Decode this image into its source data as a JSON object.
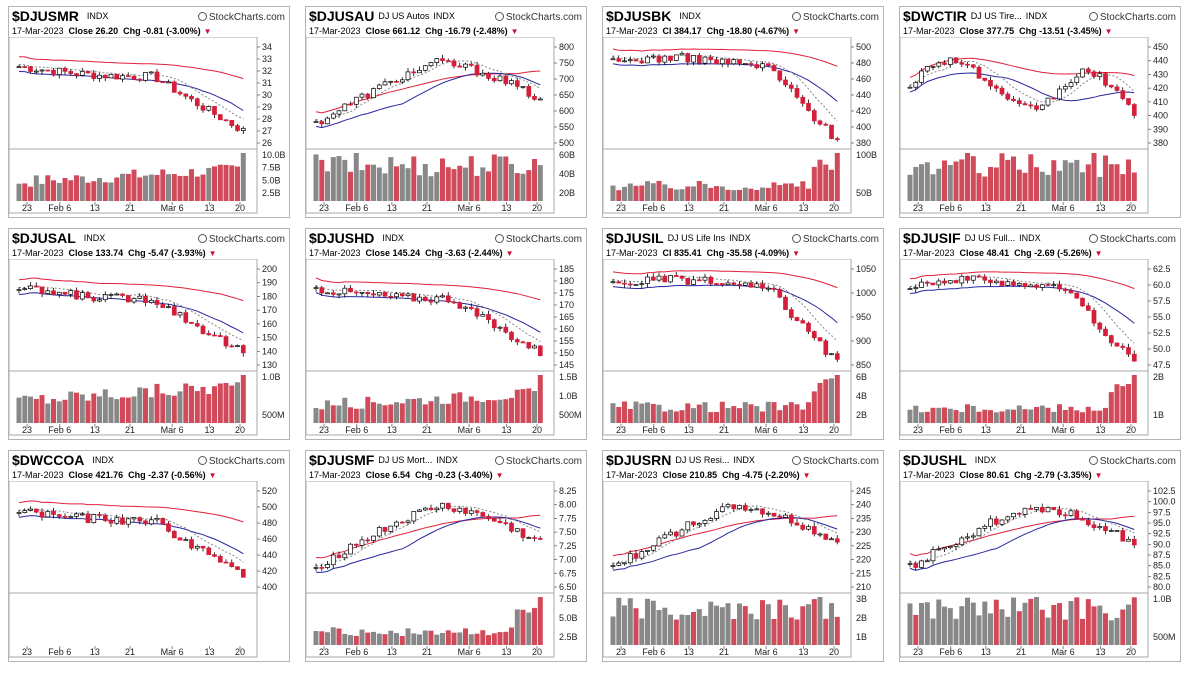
{
  "brand": "StockCharts.com",
  "colors": {
    "up": "#ffffff",
    "down": "#d41f3a",
    "ma50": "#27279e",
    "ma200": "#e0203a",
    "ma20": "#888888",
    "vol_up": "#888888",
    "vol_down": "#d14a5a"
  },
  "panels": [
    {
      "symbol": "$DJUSMR",
      "name": "",
      "date": "17-Mar-2023",
      "quote": "Close 26.20",
      "chg": "Chg -0.81 (-3.00%)",
      "trend": "down",
      "volume_trend": "rising",
      "price_ticks": [
        "34",
        "33",
        "32",
        "31",
        "30",
        "29",
        "28",
        "27",
        "26"
      ],
      "volume_ticks": [
        "10.0B",
        "7.5B",
        "5.0B",
        "2.5B"
      ],
      "x_ticks": [
        "23",
        "Feb 6",
        "13",
        "21",
        "Mar 6",
        "13",
        "20"
      ]
    },
    {
      "symbol": "$DJUSAU",
      "name": "DJ US Autos",
      "date": "17-Mar-2023",
      "quote": "Close 661.12",
      "chg": "Chg -16.79 (-2.48%)",
      "trend": "hump",
      "volume_trend": "flat",
      "price_ticks": [
        "800",
        "750",
        "700",
        "650",
        "600",
        "550",
        "500"
      ],
      "volume_ticks": [
        "60B",
        "40B",
        "20B"
      ],
      "x_ticks": [
        "23",
        "Feb 6",
        "13",
        "21",
        "Mar 6",
        "13",
        "20"
      ]
    },
    {
      "symbol": "$DJUSBK",
      "name": "",
      "date": "17-Mar-2023",
      "quote": "Cl 384.17",
      "chg": "Chg -18.80 (-4.67%)",
      "trend": "crash",
      "volume_trend": "spike",
      "price_ticks": [
        "500",
        "480",
        "460",
        "440",
        "420",
        "400",
        "380"
      ],
      "volume_ticks": [
        "100B",
        "50B"
      ],
      "x_ticks": [
        "23",
        "Feb 6",
        "13",
        "21",
        "Mar 6",
        "13",
        "20"
      ]
    },
    {
      "symbol": "$DWCTIR",
      "name": "DJ US Tire...",
      "date": "17-Mar-2023",
      "quote": "Close 377.75",
      "chg": "Chg -13.51 (-3.45%)",
      "trend": "choppy",
      "volume_trend": "flat",
      "price_ticks": [
        "450",
        "440",
        "430",
        "420",
        "410",
        "400",
        "390",
        "380"
      ],
      "volume_ticks": [],
      "x_ticks": [
        "23",
        "Feb 6",
        "13",
        "21",
        "Mar 6",
        "13",
        "20"
      ]
    },
    {
      "symbol": "$DJUSAL",
      "name": "",
      "date": "17-Mar-2023",
      "quote": "Close 133.74",
      "chg": "Chg -5.47 (-3.93%)",
      "trend": "down",
      "volume_trend": "rising",
      "price_ticks": [
        "200",
        "190",
        "180",
        "170",
        "160",
        "150",
        "140",
        "130"
      ],
      "volume_ticks": [
        "1.0B",
        "500M"
      ],
      "x_ticks": [
        "23",
        "Feb 6",
        "13",
        "21",
        "Mar 6",
        "13",
        "20"
      ]
    },
    {
      "symbol": "$DJUSHD",
      "name": "",
      "date": "17-Mar-2023",
      "quote": "Close 145.24",
      "chg": "Chg -3.63 (-2.44%)",
      "trend": "down",
      "volume_trend": "rising",
      "price_ticks": [
        "185",
        "180",
        "175",
        "170",
        "165",
        "160",
        "155",
        "150",
        "145"
      ],
      "volume_ticks": [
        "1.5B",
        "1.0B",
        "500M"
      ],
      "x_ticks": [
        "23",
        "Feb 6",
        "13",
        "21",
        "Mar 6",
        "13",
        "20"
      ]
    },
    {
      "symbol": "$DJUSIL",
      "name": "DJ US Life Ins",
      "date": "17-Mar-2023",
      "quote": "Cl 835.41",
      "chg": "Chg -35.58 (-4.09%)",
      "trend": "crash",
      "volume_trend": "spike",
      "price_ticks": [
        "1050",
        "1000",
        "950",
        "900",
        "850"
      ],
      "volume_ticks": [
        "6B",
        "4B",
        "2B"
      ],
      "x_ticks": [
        "23",
        "Feb 6",
        "13",
        "21",
        "Mar 6",
        "13",
        "20"
      ]
    },
    {
      "symbol": "$DJUSIF",
      "name": "DJ US Full...",
      "date": "17-Mar-2023",
      "quote": "Close 48.41",
      "chg": "Chg -2.69 (-5.26%)",
      "trend": "crash",
      "volume_trend": "spike",
      "price_ticks": [
        "62.5",
        "60.0",
        "57.5",
        "55.0",
        "52.5",
        "50.0",
        "47.5"
      ],
      "volume_ticks": [
        "2B",
        "1B"
      ],
      "x_ticks": [
        "23",
        "Feb 6",
        "13",
        "21",
        "Mar 6",
        "13",
        "20"
      ]
    },
    {
      "symbol": "$DWCCOA",
      "name": "",
      "date": "17-Mar-2023",
      "quote": "Close 421.76",
      "chg": "Chg -2.37 (-0.56%)",
      "trend": "down",
      "volume_trend": "none",
      "price_ticks": [
        "520",
        "500",
        "480",
        "460",
        "440",
        "420",
        "400"
      ],
      "volume_ticks": [],
      "x_ticks": [
        "23",
        "Feb 6",
        "13",
        "21",
        "Mar 6",
        "13",
        "20"
      ]
    },
    {
      "symbol": "$DJUSMF",
      "name": "DJ US Mort...",
      "date": "17-Mar-2023",
      "quote": "Close 6.54",
      "chg": "Chg -0.23 (-3.40%)",
      "trend": "hump",
      "volume_trend": "spike",
      "price_ticks": [
        "8.25",
        "8.00",
        "7.75",
        "7.50",
        "7.25",
        "7.00",
        "6.75",
        "6.50"
      ],
      "volume_ticks": [
        "7.5B",
        "5.0B",
        "2.5B"
      ],
      "x_ticks": [
        "23",
        "Feb 6",
        "13",
        "21",
        "Mar 6",
        "13",
        "20"
      ]
    },
    {
      "symbol": "$DJUSRN",
      "name": "DJ US Resi...",
      "date": "17-Mar-2023",
      "quote": "Close 210.85",
      "chg": "Chg -4.75 (-2.20%)",
      "trend": "hump",
      "volume_trend": "flat",
      "price_ticks": [
        "245",
        "240",
        "235",
        "230",
        "225",
        "220",
        "215",
        "210"
      ],
      "volume_ticks": [
        "3B",
        "2B",
        "1B"
      ],
      "x_ticks": [
        "23",
        "Feb 6",
        "13",
        "21",
        "Mar 6",
        "13",
        "20"
      ]
    },
    {
      "symbol": "$DJUSHL",
      "name": "",
      "date": "17-Mar-2023",
      "quote": "Close 80.61",
      "chg": "Chg -2.79 (-3.35%)",
      "trend": "hump",
      "volume_trend": "flat",
      "price_ticks": [
        "102.5",
        "100.0",
        "97.5",
        "95.0",
        "92.5",
        "90.0",
        "87.5",
        "85.0",
        "82.5",
        "80.0"
      ],
      "volume_ticks": [
        "1.0B",
        "500M"
      ],
      "x_ticks": [
        "23",
        "Feb 6",
        "13",
        "21",
        "Mar 6",
        "13",
        "20"
      ]
    }
  ]
}
